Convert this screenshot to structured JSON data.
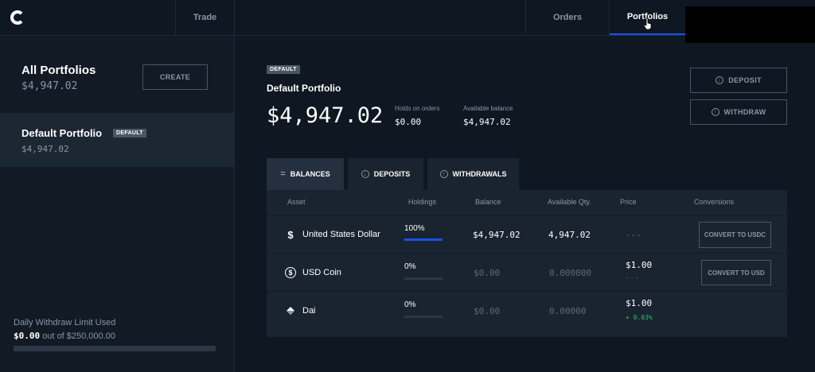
{
  "nav": {
    "trade": "Trade",
    "orders": "Orders",
    "portfolios": "Portfolios"
  },
  "sidebar": {
    "all_title": "All Portfolios",
    "all_value": "$4,947.02",
    "create_label": "CREATE",
    "default_title": "Default Portfolio",
    "default_badge": "DEFAULT",
    "default_value": "$4,947.02",
    "limit_label": "Daily Withdraw Limit Used",
    "limit_used": "$0.00",
    "limit_of": "out of $250,000.00",
    "limit_fraction": 0
  },
  "portfolio": {
    "badge": "DEFAULT",
    "title": "Default Portfolio",
    "total": "$4,947.02",
    "holds_label": "Holds on orders",
    "holds_value": "$0.00",
    "available_label": "Available balance",
    "available_value": "$4,947.02",
    "deposit_label": "DEPOSIT",
    "withdraw_label": "WITHDRAW"
  },
  "tabs": [
    {
      "label": "BALANCES",
      "icon": "equals-icon"
    },
    {
      "label": "DEPOSITS",
      "icon": "arrow-down-circle-icon"
    },
    {
      "label": "WITHDRAWALS",
      "icon": "arrow-up-circle-icon"
    }
  ],
  "table": {
    "headers": [
      "Asset",
      "Holdings",
      "Balance",
      "Available Qty.",
      "Price",
      "Conversions"
    ],
    "rows": [
      {
        "icon": "dollar-icon",
        "asset": "United States Dollar",
        "holdings_pct": "100%",
        "holdings_fraction": 1.0,
        "balance": "$4,947.02",
        "available": "4,947.02",
        "price": "---",
        "change": "",
        "convert": "CONVERT TO USDC"
      },
      {
        "icon": "usdc-coin-icon",
        "asset": "USD Coin",
        "holdings_pct": "0%",
        "holdings_fraction": 0.0,
        "balance": "$0.00",
        "available": "0.000000",
        "price": "$1.00",
        "change": "---",
        "convert": "CONVERT TO USD"
      },
      {
        "icon": "dai-diamond-icon",
        "asset": "Dai",
        "holdings_pct": "0%",
        "holdings_fraction": 0.0,
        "balance": "$0.00",
        "available": "0.00000",
        "price": "$1.00",
        "change": "+ 0.03%",
        "convert": ""
      }
    ]
  },
  "colors": {
    "accent": "#1652f0",
    "positive": "#2ebd6b"
  }
}
